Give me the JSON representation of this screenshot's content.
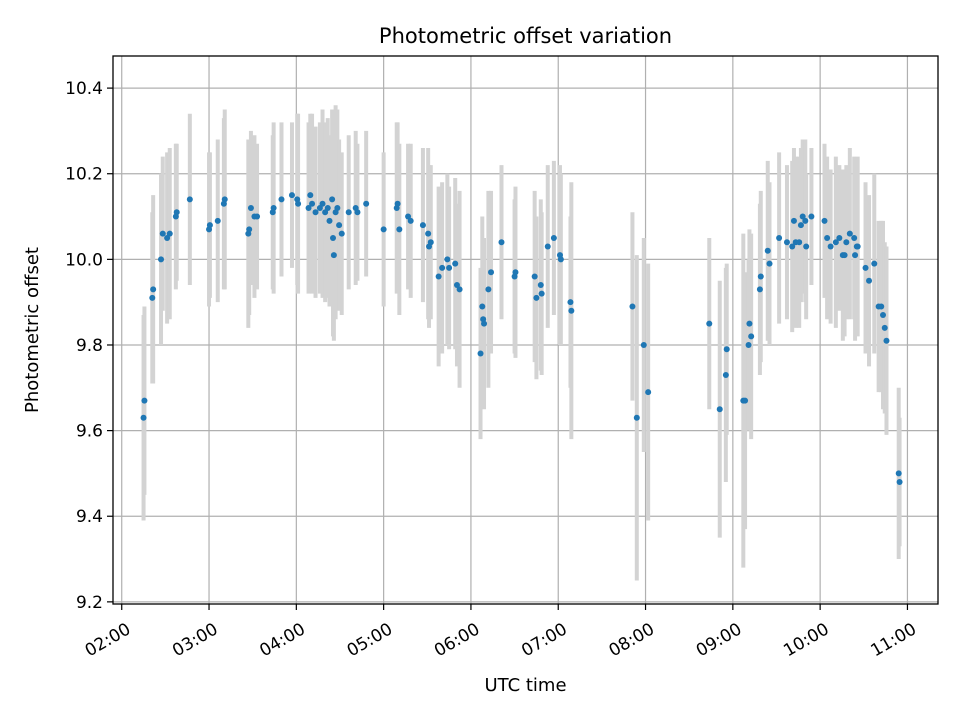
{
  "chart_data": {
    "type": "scatter",
    "title": "Photometric offset variation",
    "xlabel": "UTC time",
    "ylabel": "Photometric offset",
    "x_unit": "hours (UTC)",
    "xlim": [
      1.9,
      11.35
    ],
    "ylim": [
      9.195,
      10.475
    ],
    "x_ticks": [
      2,
      3,
      4,
      5,
      6,
      7,
      8,
      9,
      10,
      11
    ],
    "x_tick_labels": [
      "02:00",
      "03:00",
      "04:00",
      "05:00",
      "06:00",
      "07:00",
      "08:00",
      "09:00",
      "10:00",
      "11:00"
    ],
    "y_ticks": [
      9.2,
      9.4,
      9.6,
      9.8,
      10.0,
      10.2,
      10.4
    ],
    "y_tick_labels": [
      "9.2",
      "9.4",
      "9.6",
      "9.8",
      "10.0",
      "10.2",
      "10.4"
    ],
    "grid": true,
    "point_color": "#1f77b4",
    "errorbar_color": "#d3d3d3",
    "series": [
      {
        "points": [
          [
            2.25,
            9.63,
            0.24
          ],
          [
            2.26,
            9.67,
            0.22
          ],
          [
            2.35,
            9.91,
            0.2
          ],
          [
            2.36,
            9.93,
            0.22
          ],
          [
            2.45,
            10.0,
            0.2
          ],
          [
            2.47,
            10.06,
            0.18
          ],
          [
            2.52,
            10.05,
            0.2
          ],
          [
            2.55,
            10.06,
            0.2
          ],
          [
            2.62,
            10.1,
            0.17
          ],
          [
            2.63,
            10.11,
            0.16
          ],
          [
            2.78,
            10.14,
            0.2
          ],
          [
            3.0,
            10.07,
            0.18
          ],
          [
            3.01,
            10.08,
            0.17
          ],
          [
            3.1,
            10.09,
            0.19
          ],
          [
            3.17,
            10.13,
            0.2
          ],
          [
            3.18,
            10.14,
            0.21
          ],
          [
            3.45,
            10.06,
            0.22
          ],
          [
            3.46,
            10.07,
            0.2
          ],
          [
            3.48,
            10.12,
            0.18
          ],
          [
            3.52,
            10.1,
            0.19
          ],
          [
            3.55,
            10.1,
            0.17
          ],
          [
            3.73,
            10.11,
            0.18
          ],
          [
            3.74,
            10.12,
            0.2
          ],
          [
            3.83,
            10.14,
            0.18
          ],
          [
            3.95,
            10.15,
            0.17
          ],
          [
            4.01,
            10.14,
            0.2
          ],
          [
            4.02,
            10.13,
            0.21
          ],
          [
            4.14,
            10.12,
            0.2
          ],
          [
            4.16,
            10.15,
            0.19
          ],
          [
            4.18,
            10.13,
            0.21
          ],
          [
            4.22,
            10.11,
            0.2
          ],
          [
            4.27,
            10.12,
            0.2
          ],
          [
            4.3,
            10.13,
            0.22
          ],
          [
            4.33,
            10.11,
            0.21
          ],
          [
            4.36,
            10.12,
            0.21
          ],
          [
            4.38,
            10.09,
            0.2
          ],
          [
            4.41,
            10.14,
            0.21
          ],
          [
            4.42,
            10.05,
            0.23
          ],
          [
            4.43,
            10.01,
            0.2
          ],
          [
            4.45,
            10.11,
            0.25
          ],
          [
            4.47,
            10.12,
            0.23
          ],
          [
            4.49,
            10.08,
            0.2
          ],
          [
            4.52,
            10.06,
            0.19
          ],
          [
            4.6,
            10.11,
            0.18
          ],
          [
            4.68,
            10.12,
            0.18
          ],
          [
            4.7,
            10.11,
            0.16
          ],
          [
            4.8,
            10.13,
            0.17
          ],
          [
            5.0,
            10.07,
            0.18
          ],
          [
            5.15,
            10.12,
            0.2
          ],
          [
            5.16,
            10.13,
            0.19
          ],
          [
            5.18,
            10.07,
            0.2
          ],
          [
            5.28,
            10.1,
            0.17
          ],
          [
            5.31,
            10.09,
            0.18
          ],
          [
            5.45,
            10.08,
            0.18
          ],
          [
            5.51,
            10.06,
            0.2
          ],
          [
            5.52,
            10.03,
            0.19
          ],
          [
            5.54,
            10.04,
            0.18
          ],
          [
            5.63,
            9.96,
            0.21
          ],
          [
            5.67,
            9.98,
            0.2
          ],
          [
            5.73,
            10.0,
            0.2
          ],
          [
            5.75,
            9.98,
            0.19
          ],
          [
            5.82,
            9.99,
            0.2
          ],
          [
            5.84,
            9.94,
            0.19
          ],
          [
            5.87,
            9.93,
            0.23
          ],
          [
            6.11,
            9.78,
            0.2
          ],
          [
            6.13,
            9.89,
            0.21
          ],
          [
            6.14,
            9.86,
            0.18
          ],
          [
            6.15,
            9.85,
            0.2
          ],
          [
            6.2,
            9.93,
            0.23
          ],
          [
            6.23,
            9.97,
            0.19
          ],
          [
            6.35,
            10.04,
            0.18
          ],
          [
            6.5,
            9.96,
            0.18
          ],
          [
            6.51,
            9.97,
            0.2
          ],
          [
            6.73,
            9.96,
            0.2
          ],
          [
            6.75,
            9.91,
            0.19
          ],
          [
            6.8,
            9.94,
            0.2
          ],
          [
            6.81,
            9.92,
            0.19
          ],
          [
            6.88,
            10.03,
            0.19
          ],
          [
            6.95,
            10.05,
            0.18
          ],
          [
            7.02,
            10.01,
            0.21
          ],
          [
            7.03,
            10.0,
            0.2
          ],
          [
            7.14,
            9.9,
            0.2
          ],
          [
            7.15,
            9.88,
            0.3
          ],
          [
            7.85,
            9.89,
            0.22
          ],
          [
            7.9,
            9.63,
            0.38
          ],
          [
            7.98,
            9.8,
            0.25
          ],
          [
            8.03,
            9.69,
            0.3
          ],
          [
            8.73,
            9.85,
            0.2
          ],
          [
            8.85,
            9.65,
            0.3
          ],
          [
            8.92,
            9.73,
            0.25
          ],
          [
            8.93,
            9.79,
            0.2
          ],
          [
            9.12,
            9.67,
            0.39
          ],
          [
            9.14,
            9.67,
            0.3
          ],
          [
            9.18,
            9.8,
            0.2
          ],
          [
            9.19,
            9.85,
            0.22
          ],
          [
            9.21,
            9.82,
            0.24
          ],
          [
            9.31,
            9.93,
            0.2
          ],
          [
            9.32,
            9.96,
            0.2
          ],
          [
            9.4,
            10.02,
            0.21
          ],
          [
            9.42,
            9.99,
            0.19
          ],
          [
            9.53,
            10.05,
            0.2
          ],
          [
            9.62,
            10.04,
            0.18
          ],
          [
            9.68,
            10.03,
            0.2
          ],
          [
            9.7,
            10.09,
            0.17
          ],
          [
            9.72,
            10.04,
            0.2
          ],
          [
            9.76,
            10.04,
            0.2
          ],
          [
            9.78,
            10.08,
            0.18
          ],
          [
            9.8,
            10.1,
            0.18
          ],
          [
            9.83,
            10.09,
            0.19
          ],
          [
            9.84,
            10.03,
            0.17
          ],
          [
            9.9,
            10.1,
            0.16
          ],
          [
            10.05,
            10.09,
            0.18
          ],
          [
            10.08,
            10.05,
            0.19
          ],
          [
            10.12,
            10.03,
            0.18
          ],
          [
            10.18,
            10.04,
            0.2
          ],
          [
            10.22,
            10.05,
            0.17
          ],
          [
            10.26,
            10.01,
            0.2
          ],
          [
            10.28,
            10.01,
            0.19
          ],
          [
            10.3,
            10.04,
            0.18
          ],
          [
            10.34,
            10.06,
            0.2
          ],
          [
            10.39,
            10.05,
            0.19
          ],
          [
            10.4,
            10.01,
            0.2
          ],
          [
            10.42,
            10.03,
            0.2
          ],
          [
            10.43,
            10.03,
            0.21
          ],
          [
            10.52,
            9.98,
            0.2
          ],
          [
            10.56,
            9.95,
            0.2
          ],
          [
            10.62,
            9.99,
            0.21
          ],
          [
            10.67,
            9.89,
            0.2
          ],
          [
            10.7,
            9.89,
            0.2
          ],
          [
            10.72,
            9.87,
            0.22
          ],
          [
            10.74,
            9.84,
            0.2
          ],
          [
            10.76,
            9.81,
            0.22
          ],
          [
            10.9,
            9.5,
            0.2
          ],
          [
            10.91,
            9.48,
            0.15
          ]
        ]
      }
    ]
  }
}
